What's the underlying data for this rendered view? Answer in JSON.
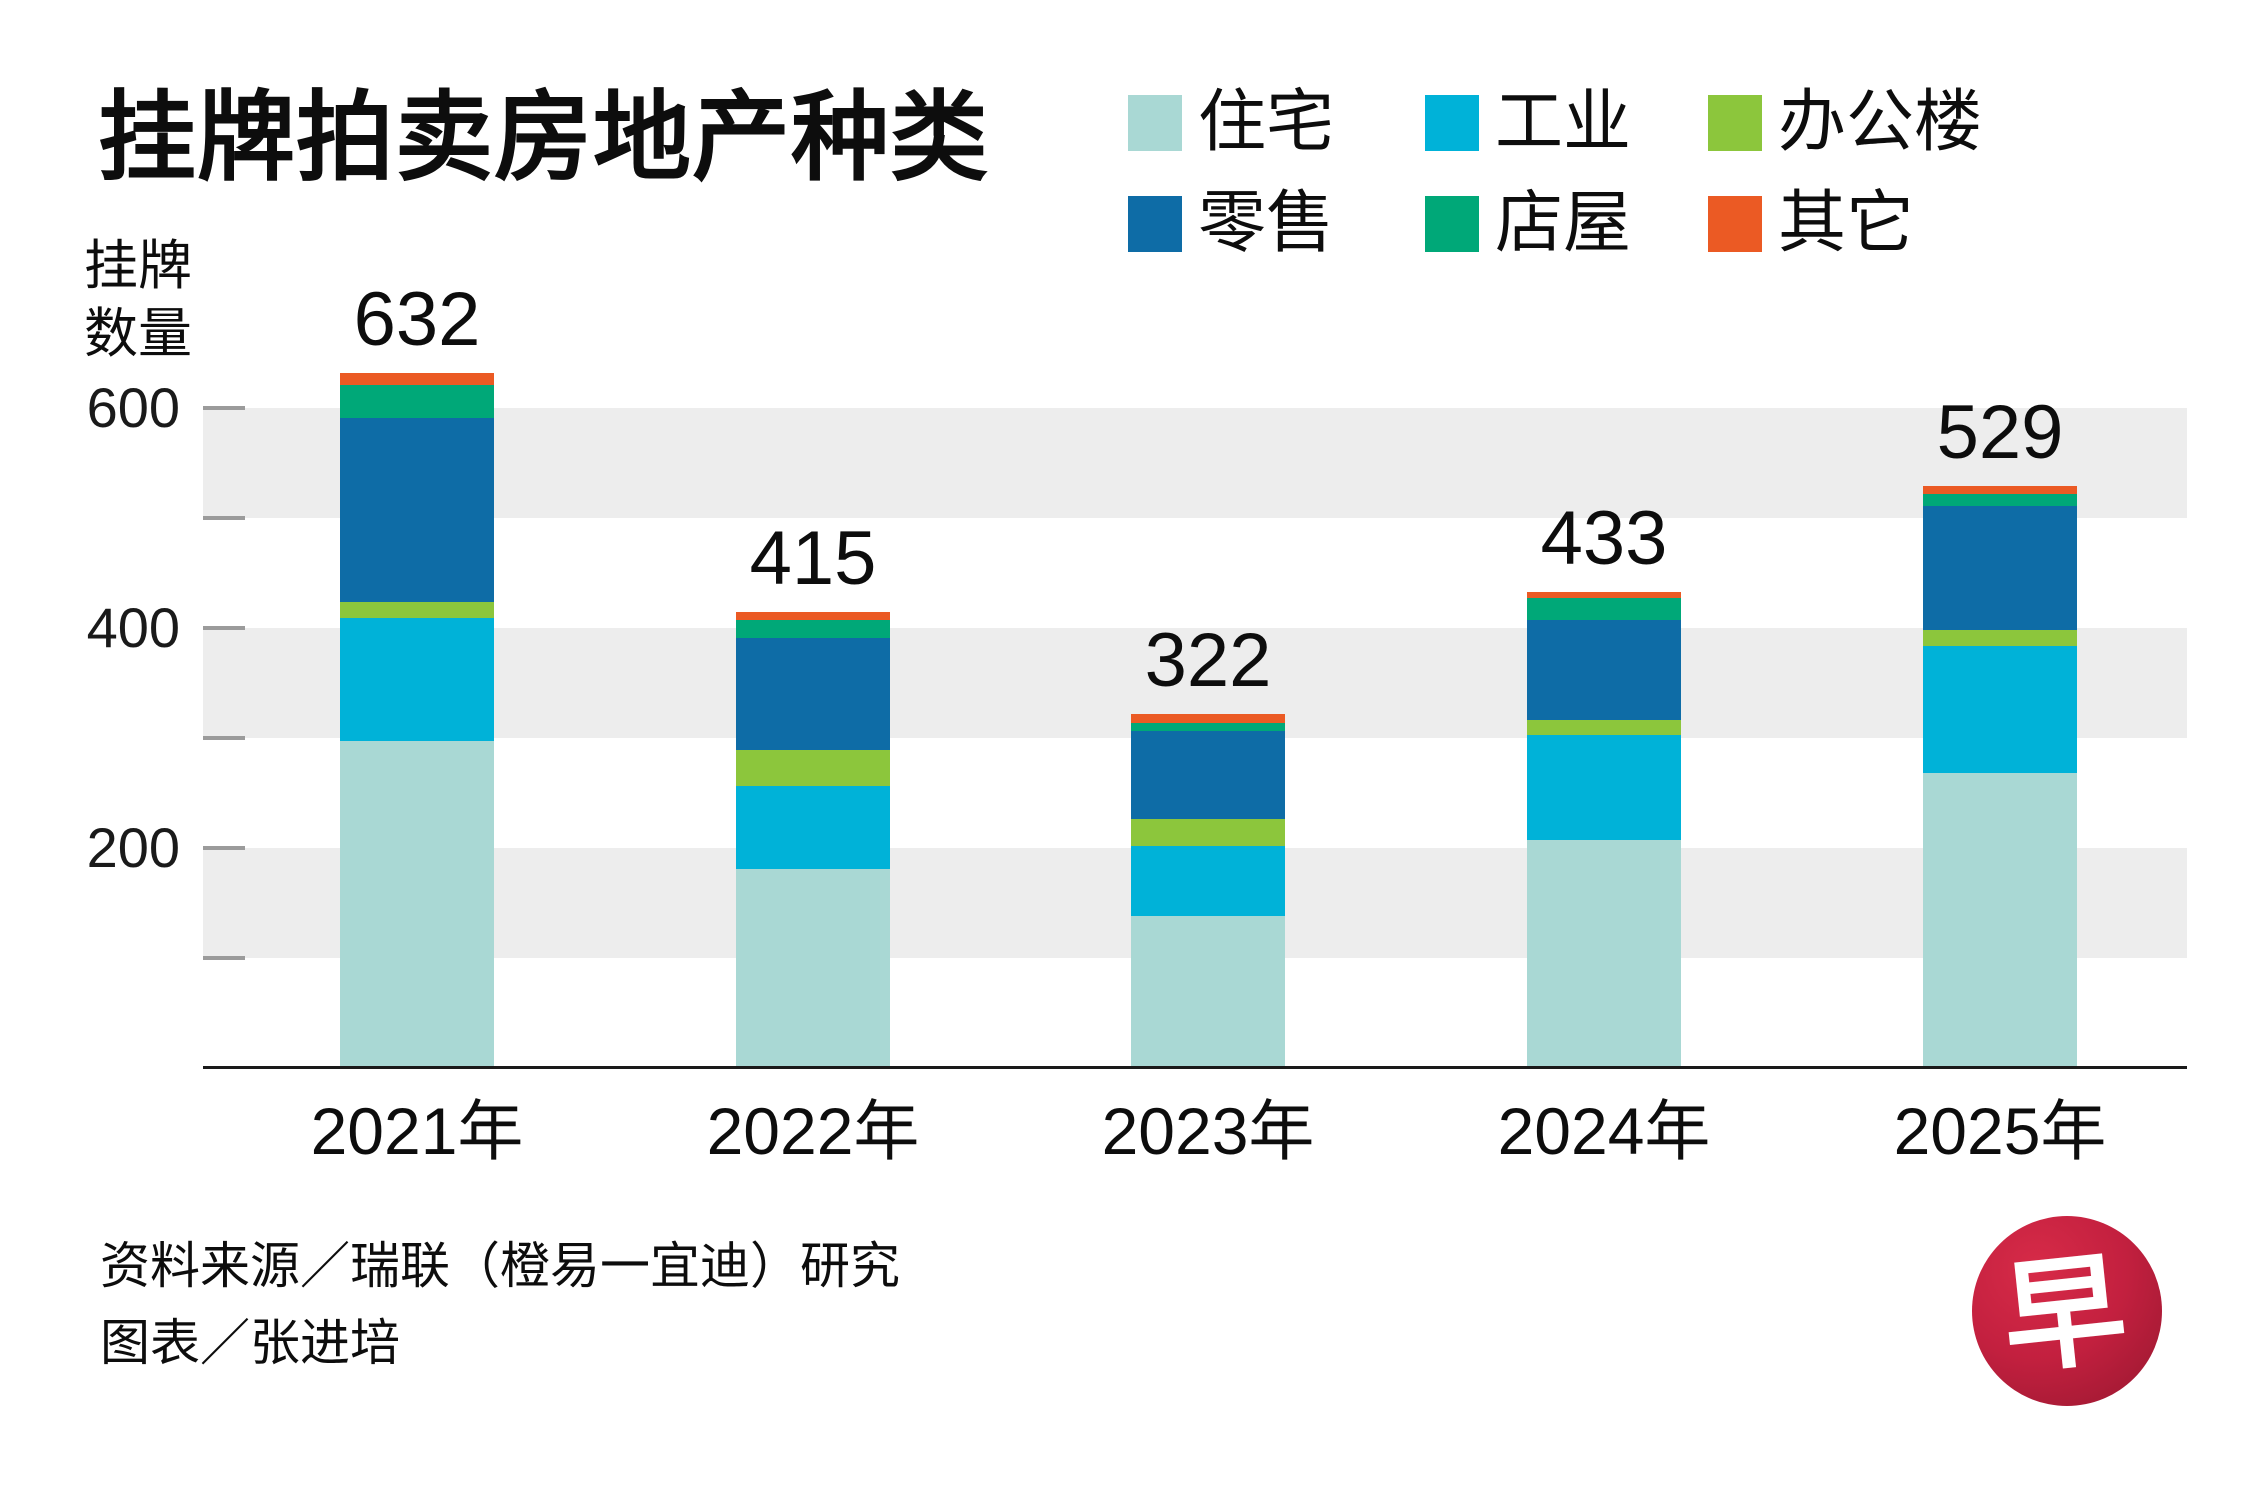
{
  "title": "挂牌拍卖房地产种类",
  "y_axis_title_lines": [
    "挂牌",
    "数量"
  ],
  "source_line1": "资料来源／瑞联（橙易一宜迪）研究",
  "source_line2": "图表／张进培",
  "logo_char": "早",
  "colors": {
    "residential": "#a9d8d4",
    "industrial": "#00b2d8",
    "office": "#8cc63c",
    "retail": "#0e6ca6",
    "shophouse": "#00a878",
    "other": "#eb5a24",
    "grid_band": "#ededed",
    "tick_dash": "#9b9b9b",
    "axis": "#1a1a1a",
    "logo_red": "#c3203f"
  },
  "chart_data": {
    "type": "bar",
    "stacked": true,
    "title": "挂牌拍卖房地产种类",
    "ylabel": "挂牌数量",
    "categories": [
      "2021年",
      "2022年",
      "2023年",
      "2024年",
      "2025年"
    ],
    "totals": [
      632,
      415,
      322,
      433,
      529
    ],
    "series": [
      {
        "name": "住宅",
        "color": "#a9d8d4",
        "values": [
          297,
          181,
          138,
          207,
          268
        ]
      },
      {
        "name": "工业",
        "color": "#00b2d8",
        "values": [
          112,
          75,
          64,
          96,
          116
        ]
      },
      {
        "name": "办公楼",
        "color": "#8cc63c",
        "values": [
          15,
          33,
          24,
          13,
          14
        ]
      },
      {
        "name": "零售",
        "color": "#0e6ca6",
        "values": [
          167,
          102,
          80,
          91,
          113
        ]
      },
      {
        "name": "店屋",
        "color": "#00a878",
        "values": [
          30,
          16,
          8,
          20,
          11
        ]
      },
      {
        "name": "其它",
        "color": "#eb5a24",
        "values": [
          11,
          8,
          8,
          6,
          7
        ]
      }
    ],
    "ylim": [
      0,
      700
    ],
    "yticks_all": [
      100,
      200,
      300,
      400,
      500,
      600
    ],
    "yticks_labeled": [
      200,
      400,
      600
    ],
    "grid_bands": [
      [
        500,
        600
      ],
      [
        300,
        400
      ],
      [
        100,
        200
      ]
    ],
    "grid": "banded-rows",
    "legend_position": "top-right"
  }
}
